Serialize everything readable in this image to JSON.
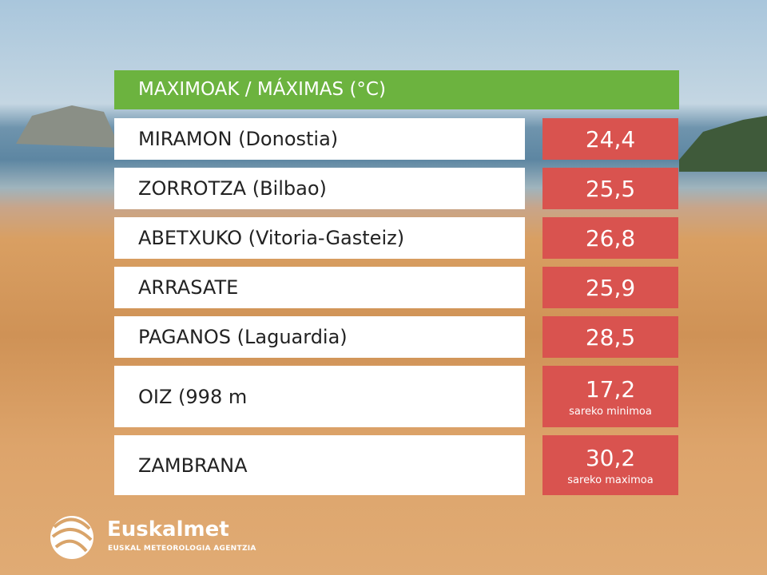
{
  "header": {
    "title": "MAXIMOAK / MÁXIMAS (°C)"
  },
  "rows": [
    {
      "station": "MIRAMON (Donostia)",
      "value": "24,4"
    },
    {
      "station": "ZORROTZA (Bilbao)",
      "value": "25,5"
    },
    {
      "station": "ABETXUKO (Vitoria-Gasteiz)",
      "value": "26,8"
    },
    {
      "station": "ARRASATE",
      "value": "25,9"
    },
    {
      "station": "PAGANOS (Laguardia)",
      "value": "28,5"
    },
    {
      "station": "OIZ (998 m",
      "value": "17,2",
      "note": "sareko minimoa"
    },
    {
      "station": "ZAMBRANA",
      "value": "30,2",
      "note": "sareko maximoa"
    }
  ],
  "logo": {
    "name": "Euskalmet",
    "tagline": "EUSKAL METEOROLOGIA AGENTZIA"
  }
}
